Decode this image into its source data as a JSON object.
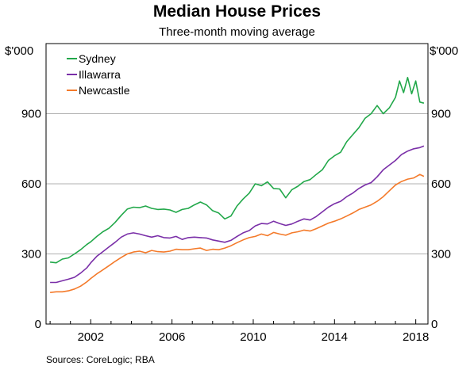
{
  "chart_data": {
    "type": "line",
    "title": "Median House Prices",
    "subtitle": "Three-month moving average",
    "y_unit_left": "$'000",
    "y_unit_right": "$'000",
    "source": "Sources:  CoreLogic; RBA",
    "xlim": [
      1999.8,
      2018.6
    ],
    "ylim": [
      0,
      1200
    ],
    "x_ticks": [
      2002,
      2006,
      2010,
      2014,
      2018
    ],
    "y_ticks": [
      0,
      300,
      600,
      900
    ],
    "grid": true,
    "legend_position": "top-left",
    "colors": {
      "sydney": "#22a84a",
      "illawarra": "#7a2fa8",
      "newcastle": "#f47a2a"
    },
    "series": [
      {
        "name": "Sydney",
        "color": "#22a84a",
        "x": [
          2000.0,
          2000.3,
          2000.6,
          2000.9,
          2001.2,
          2001.5,
          2001.8,
          2002.0,
          2002.3,
          2002.6,
          2002.9,
          2003.2,
          2003.5,
          2003.8,
          2004.1,
          2004.4,
          2004.7,
          2005.0,
          2005.3,
          2005.6,
          2005.9,
          2006.2,
          2006.5,
          2006.8,
          2007.1,
          2007.4,
          2007.7,
          2008.0,
          2008.3,
          2008.6,
          2008.9,
          2009.2,
          2009.5,
          2009.8,
          2010.1,
          2010.4,
          2010.7,
          2011.0,
          2011.3,
          2011.6,
          2011.9,
          2012.2,
          2012.5,
          2012.8,
          2013.1,
          2013.4,
          2013.7,
          2014.0,
          2014.3,
          2014.6,
          2014.9,
          2015.2,
          2015.5,
          2015.8,
          2016.1,
          2016.4,
          2016.7,
          2017.0,
          2017.2,
          2017.4,
          2017.6,
          2017.8,
          2018.0,
          2018.2,
          2018.4
        ],
        "values": [
          265,
          262,
          278,
          283,
          300,
          318,
          340,
          352,
          375,
          395,
          410,
          435,
          465,
          492,
          500,
          498,
          505,
          495,
          490,
          492,
          488,
          478,
          490,
          495,
          510,
          522,
          510,
          485,
          475,
          450,
          462,
          505,
          535,
          560,
          600,
          592,
          608,
          580,
          578,
          540,
          575,
          590,
          610,
          618,
          640,
          660,
          700,
          720,
          735,
          780,
          810,
          840,
          880,
          900,
          935,
          900,
          925,
          970,
          1040,
          990,
          1055,
          985,
          1040,
          950,
          945
        ]
      },
      {
        "name": "Illawarra",
        "color": "#7a2fa8",
        "x": [
          2000.0,
          2000.3,
          2000.6,
          2000.9,
          2001.2,
          2001.5,
          2001.8,
          2002.0,
          2002.3,
          2002.6,
          2002.9,
          2003.2,
          2003.5,
          2003.8,
          2004.1,
          2004.4,
          2004.7,
          2005.0,
          2005.3,
          2005.6,
          2005.9,
          2006.2,
          2006.5,
          2006.8,
          2007.1,
          2007.4,
          2007.7,
          2008.0,
          2008.3,
          2008.6,
          2008.9,
          2009.2,
          2009.5,
          2009.8,
          2010.1,
          2010.4,
          2010.7,
          2011.0,
          2011.3,
          2011.6,
          2011.9,
          2012.2,
          2012.5,
          2012.8,
          2013.1,
          2013.4,
          2013.7,
          2014.0,
          2014.3,
          2014.6,
          2014.9,
          2015.2,
          2015.5,
          2015.8,
          2016.1,
          2016.4,
          2016.7,
          2017.0,
          2017.3,
          2017.6,
          2017.9,
          2018.2,
          2018.4
        ],
        "values": [
          178,
          178,
          185,
          192,
          200,
          218,
          240,
          262,
          290,
          310,
          330,
          350,
          372,
          385,
          390,
          385,
          378,
          372,
          378,
          370,
          368,
          375,
          362,
          370,
          372,
          370,
          368,
          360,
          355,
          350,
          358,
          375,
          390,
          400,
          420,
          430,
          428,
          440,
          430,
          422,
          428,
          440,
          450,
          445,
          460,
          480,
          500,
          515,
          525,
          545,
          560,
          580,
          595,
          605,
          630,
          660,
          680,
          700,
          725,
          740,
          750,
          755,
          762
        ]
      },
      {
        "name": "Newcastle",
        "color": "#f47a2a",
        "x": [
          2000.0,
          2000.3,
          2000.6,
          2000.9,
          2001.2,
          2001.5,
          2001.8,
          2002.0,
          2002.3,
          2002.6,
          2002.9,
          2003.2,
          2003.5,
          2003.8,
          2004.1,
          2004.4,
          2004.7,
          2005.0,
          2005.3,
          2005.6,
          2005.9,
          2006.2,
          2006.5,
          2006.8,
          2007.1,
          2007.4,
          2007.7,
          2008.0,
          2008.3,
          2008.6,
          2008.9,
          2009.2,
          2009.5,
          2009.8,
          2010.1,
          2010.4,
          2010.7,
          2011.0,
          2011.3,
          2011.6,
          2011.9,
          2012.2,
          2012.5,
          2012.8,
          2013.1,
          2013.4,
          2013.7,
          2014.0,
          2014.3,
          2014.6,
          2014.9,
          2015.2,
          2015.5,
          2015.8,
          2016.1,
          2016.4,
          2016.7,
          2017.0,
          2017.3,
          2017.6,
          2017.9,
          2018.2,
          2018.4
        ],
        "values": [
          135,
          138,
          138,
          142,
          150,
          162,
          180,
          195,
          215,
          232,
          250,
          268,
          285,
          300,
          308,
          312,
          305,
          315,
          310,
          308,
          312,
          320,
          318,
          318,
          322,
          325,
          315,
          320,
          318,
          325,
          335,
          348,
          360,
          370,
          375,
          385,
          378,
          392,
          385,
          380,
          390,
          395,
          402,
          398,
          408,
          420,
          432,
          440,
          450,
          462,
          475,
          490,
          500,
          510,
          525,
          545,
          570,
          595,
          610,
          620,
          625,
          640,
          632
        ]
      }
    ]
  }
}
